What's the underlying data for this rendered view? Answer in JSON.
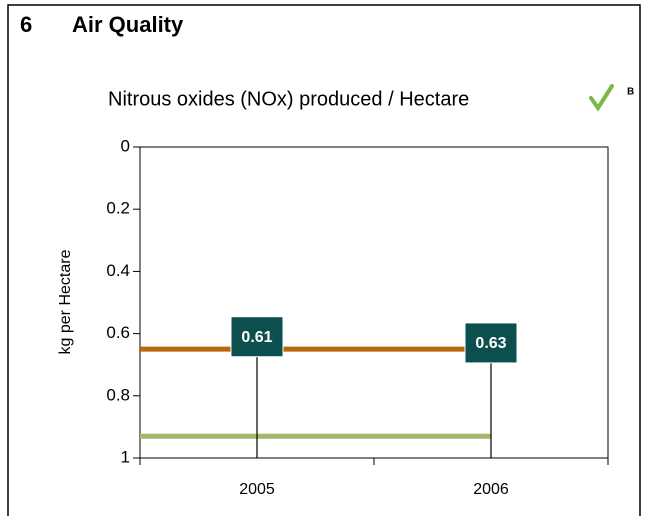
{
  "chart_data": {
    "type": "bar",
    "section_number": "6",
    "section_title": "Air Quality",
    "title": "Nitrous oxides (NOx) produced / Hectare",
    "title_note": "B",
    "ylabel": "kg per Hectare",
    "categories": [
      "2005",
      "2006"
    ],
    "values": [
      0.61,
      0.63
    ],
    "color": "#0d4f4f",
    "ylim": [
      0,
      1
    ],
    "yticks": [
      0,
      0.2,
      0.4,
      0.6,
      0.8,
      1
    ],
    "inverted_y": true,
    "reference_lines": [
      {
        "value": 0.65,
        "color": "#b8690a"
      },
      {
        "value": 0.93,
        "color": "#a4b86a"
      }
    ]
  }
}
